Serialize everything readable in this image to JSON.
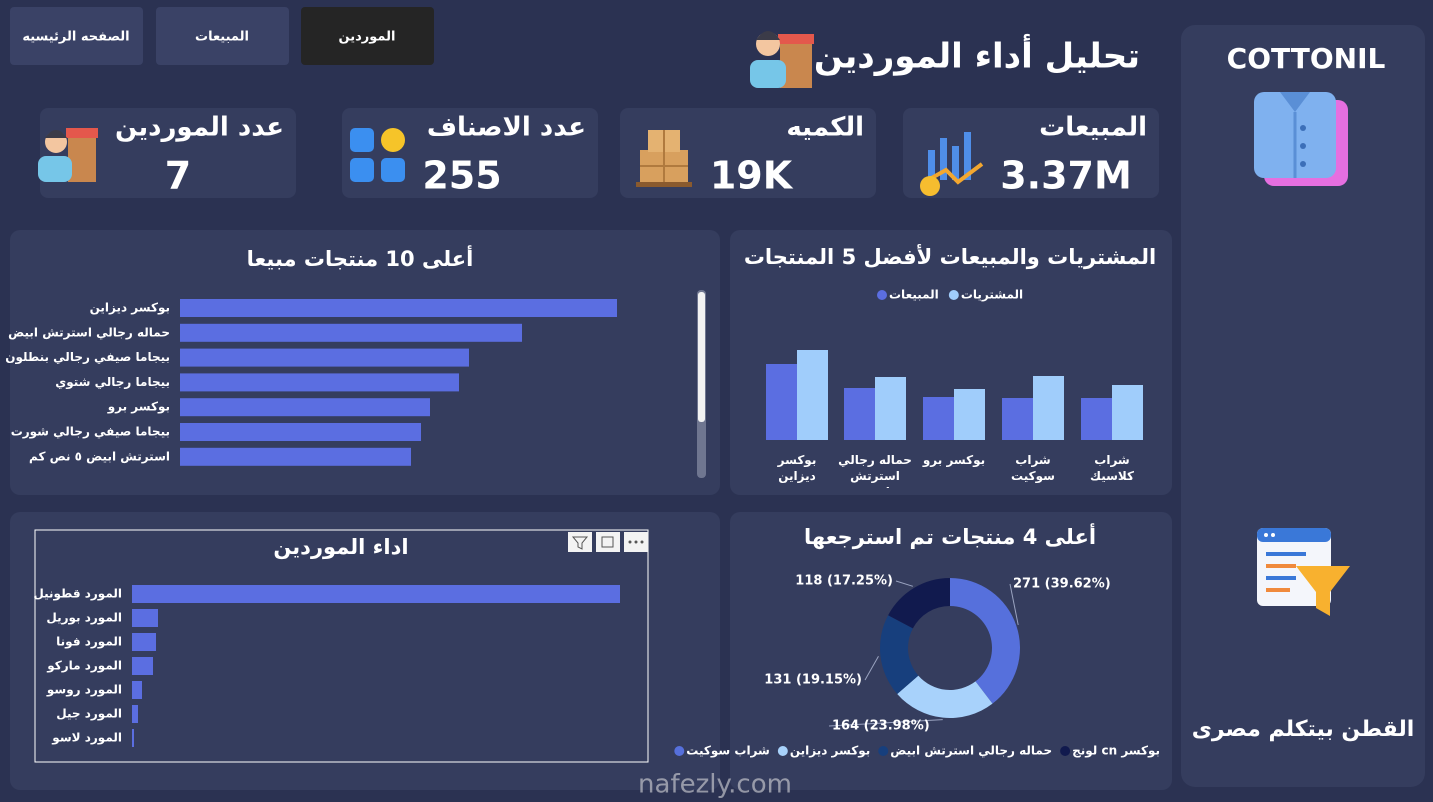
{
  "nav": {
    "buttons": [
      "الصفحه الرئيسيه",
      "المبيعات",
      "الموردين"
    ],
    "active": 2
  },
  "header": {
    "title": "تحليل أداء الموردين"
  },
  "sidebar": {
    "brand": "COTTONIL",
    "slogan": "القطن بيتكلم مصرى"
  },
  "kpis": [
    {
      "label": "المبيعات",
      "value": "3.37M"
    },
    {
      "label": "الكميه",
      "value": "19K"
    },
    {
      "label": "عدد الاصناف",
      "value": "255"
    },
    {
      "label": "عدد الموردين",
      "value": "7"
    }
  ],
  "chart_data": [
    {
      "type": "hbar",
      "title": "أعلى 10 منتجات مبيعا",
      "categories": [
        "بوكسر ديزاين",
        "حماله رجالي استرتش ابيض",
        "بيجاما صيفي رجالي بنطلون",
        "بيجاما رجالي شتوي",
        "بوكسر برو",
        "بيجاما صيفي رجالي شورت",
        "استرتش ابيض ٥ نص كم"
      ],
      "values": [
        437,
        342,
        289,
        279,
        250,
        241,
        231
      ],
      "color": "#5b6ee1"
    },
    {
      "type": "grouped-bar",
      "title": "المشتريات والمبيعات لأفضل 5 المنتجات",
      "categories": [
        "بوكسر ديزاين",
        "حماله رجالي استرتش اب...",
        "بوكسر برو",
        "شراب سوكيت",
        "شراب كلاسيك"
      ],
      "series": [
        {
          "name": "المبيعات",
          "color": "#5b6ee1",
          "values": [
            76,
            52,
            43,
            42,
            42
          ]
        },
        {
          "name": "المشتريات",
          "color": "#a0cdfb",
          "values": [
            90,
            63,
            51,
            64,
            55
          ]
        }
      ]
    },
    {
      "type": "hbar",
      "title": "اداء الموردين",
      "categories": [
        "المورد قطونيل",
        "المورد بوريل",
        "المورد فونا",
        "المورد ماركو",
        "المورد روسو",
        "المورد جيل",
        "المورد لاسو"
      ],
      "values": [
        488,
        26,
        24,
        21,
        10,
        6,
        2
      ],
      "color": "#5b6ee1"
    },
    {
      "type": "donut",
      "title": "أعلى 4 منتجات تم استرجعها",
      "categories": [
        "شراب سوكيت",
        "بوكسر ديزاين",
        "حماله رجالي استرتش ابيض",
        "لونج cn بوكسر"
      ],
      "values": [
        271,
        164,
        131,
        118
      ],
      "value_labels": [
        "271 (39.62%)",
        "164 (23.98%)",
        "131 (19.15%)",
        "118 (17.25%)"
      ],
      "colors": [
        "#5670dc",
        "#a8d2fb",
        "#173f7d",
        "#111a4e"
      ]
    }
  ],
  "watermark": "nafezly.com"
}
